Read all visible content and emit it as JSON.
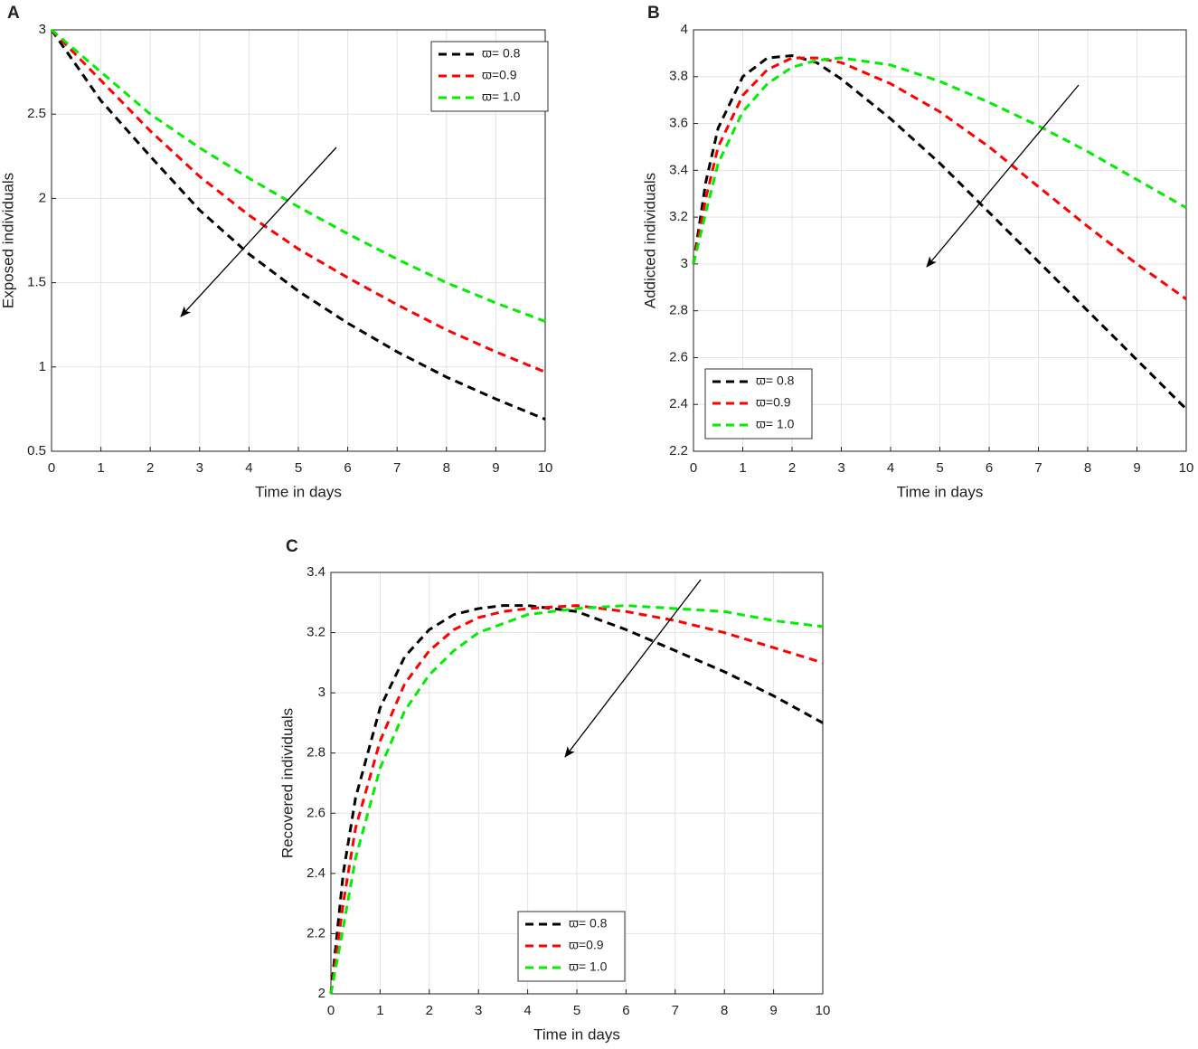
{
  "chart_data": [
    {
      "type": "line",
      "panel": "A",
      "xlabel": "Time in days",
      "ylabel": "Exposed individuals",
      "x": [
        0,
        1,
        2,
        3,
        4,
        5,
        6,
        7,
        8,
        9,
        10
      ],
      "series": [
        {
          "name": "ϖ= 0.8",
          "color": "#000000",
          "values": [
            3,
            2.58,
            2.25,
            1.93,
            1.67,
            1.45,
            1.26,
            1.09,
            0.94,
            0.81,
            0.69
          ]
        },
        {
          "name": "ϖ=0.9",
          "color": "#ff0000",
          "values": [
            3,
            2.7,
            2.4,
            2.13,
            1.9,
            1.7,
            1.53,
            1.37,
            1.22,
            1.09,
            0.97
          ]
        },
        {
          "name": "ϖ= 1.0",
          "color": "#00ee00",
          "values": [
            3,
            2.75,
            2.5,
            2.3,
            2.12,
            1.95,
            1.79,
            1.64,
            1.5,
            1.38,
            1.27
          ]
        }
      ],
      "xlim": [
        0,
        10
      ],
      "ylim": [
        0.5,
        3
      ],
      "xticks": [
        0,
        1,
        2,
        3,
        4,
        5,
        6,
        7,
        8,
        9,
        10
      ],
      "yticks": [
        0.5,
        1,
        1.5,
        2,
        2.5,
        3
      ],
      "grid": true,
      "legend": "upper right"
    },
    {
      "type": "line",
      "panel": "B",
      "xlabel": "Time in days",
      "ylabel": "Addicted individuals",
      "x": [
        0,
        0.25,
        0.5,
        1,
        1.5,
        2,
        2.5,
        3,
        4,
        5,
        6,
        7,
        8,
        9,
        10
      ],
      "series": [
        {
          "name": "ϖ= 0.8",
          "color": "#000000",
          "values": [
            3,
            3.35,
            3.58,
            3.8,
            3.88,
            3.89,
            3.86,
            3.79,
            3.62,
            3.43,
            3.22,
            3.01,
            2.8,
            2.59,
            2.38
          ]
        },
        {
          "name": "ϖ=0.9",
          "color": "#ff0000",
          "values": [
            3,
            3.28,
            3.5,
            3.72,
            3.83,
            3.88,
            3.88,
            3.86,
            3.77,
            3.65,
            3.5,
            3.33,
            3.16,
            3.0,
            2.85
          ]
        },
        {
          "name": "ϖ= 1.0",
          "color": "#00ee00",
          "values": [
            3,
            3.22,
            3.43,
            3.65,
            3.77,
            3.84,
            3.87,
            3.88,
            3.85,
            3.78,
            3.69,
            3.59,
            3.48,
            3.36,
            3.24
          ]
        }
      ],
      "xlim": [
        0,
        10
      ],
      "ylim": [
        2.2,
        4
      ],
      "xticks": [
        0,
        1,
        2,
        3,
        4,
        5,
        6,
        7,
        8,
        9,
        10
      ],
      "yticks": [
        2.2,
        2.4,
        2.6,
        2.8,
        3,
        3.2,
        3.4,
        3.6,
        3.8,
        4
      ],
      "grid": true,
      "legend": "lower left"
    },
    {
      "type": "line",
      "panel": "C",
      "xlabel": "Time in days",
      "ylabel": "Recovered individuals",
      "x": [
        0,
        0.25,
        0.5,
        1,
        1.5,
        2,
        2.5,
        3,
        3.5,
        4,
        5,
        6,
        7,
        8,
        9,
        10
      ],
      "series": [
        {
          "name": "ϖ= 0.8",
          "color": "#000000",
          "values": [
            2,
            2.4,
            2.65,
            2.95,
            3.12,
            3.21,
            3.26,
            3.28,
            3.29,
            3.29,
            3.27,
            3.21,
            3.14,
            3.07,
            2.99,
            2.9
          ]
        },
        {
          "name": "ϖ=0.9",
          "color": "#ff0000",
          "values": [
            2,
            2.3,
            2.55,
            2.84,
            3.03,
            3.14,
            3.21,
            3.25,
            3.27,
            3.28,
            3.29,
            3.27,
            3.24,
            3.2,
            3.15,
            3.1
          ]
        },
        {
          "name": "ϖ= 1.0",
          "color": "#00ee00",
          "values": [
            2,
            2.22,
            2.45,
            2.75,
            2.94,
            3.06,
            3.14,
            3.2,
            3.23,
            3.26,
            3.28,
            3.29,
            3.28,
            3.27,
            3.24,
            3.22
          ]
        }
      ],
      "xlim": [
        0,
        10
      ],
      "ylim": [
        2,
        3.4
      ],
      "xticks": [
        0,
        1,
        2,
        3,
        4,
        5,
        6,
        7,
        8,
        9,
        10
      ],
      "yticks": [
        2,
        2.2,
        2.4,
        2.6,
        2.8,
        3,
        3.2,
        3.4
      ],
      "grid": true,
      "legend": "lower center"
    }
  ]
}
